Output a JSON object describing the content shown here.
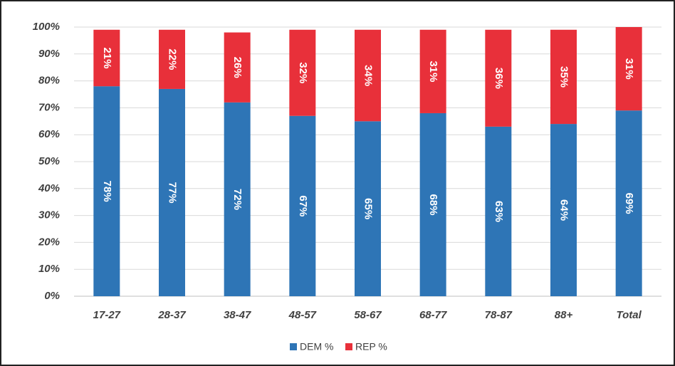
{
  "chart_data": {
    "type": "stacked_bar",
    "categories": [
      "17-27",
      "28-37",
      "38-47",
      "48-57",
      "58-67",
      "68-77",
      "78-87",
      "88+",
      "Total"
    ],
    "series": [
      {
        "name": "DEM %",
        "color": "#2e75b6",
        "values": [
          78,
          77,
          72,
          67,
          65,
          68,
          63,
          64,
          69
        ],
        "value_labels": [
          "78%",
          "77%",
          "72%",
          "67%",
          "65%",
          "68%",
          "63%",
          "64%",
          "69%"
        ]
      },
      {
        "name": "REP %",
        "color": "#e8303a",
        "values": [
          21,
          22,
          26,
          32,
          34,
          31,
          36,
          35,
          31
        ],
        "value_labels": [
          "21%",
          "22%",
          "26%",
          "32%",
          "34%",
          "31%",
          "36%",
          "35%",
          "31%"
        ]
      }
    ],
    "ylim": [
      0,
      100
    ],
    "yticks": [
      {
        "value": 0,
        "label": "0%"
      },
      {
        "value": 10,
        "label": "10%"
      },
      {
        "value": 20,
        "label": "20%"
      },
      {
        "value": 30,
        "label": "30%"
      },
      {
        "value": 40,
        "label": "40%"
      },
      {
        "value": 50,
        "label": "50%"
      },
      {
        "value": 60,
        "label": "60%"
      },
      {
        "value": 70,
        "label": "70%"
      },
      {
        "value": 80,
        "label": "80%"
      },
      {
        "value": 90,
        "label": "90%"
      },
      {
        "value": 100,
        "label": "100%"
      }
    ],
    "grid": true,
    "legend": "bottom"
  }
}
